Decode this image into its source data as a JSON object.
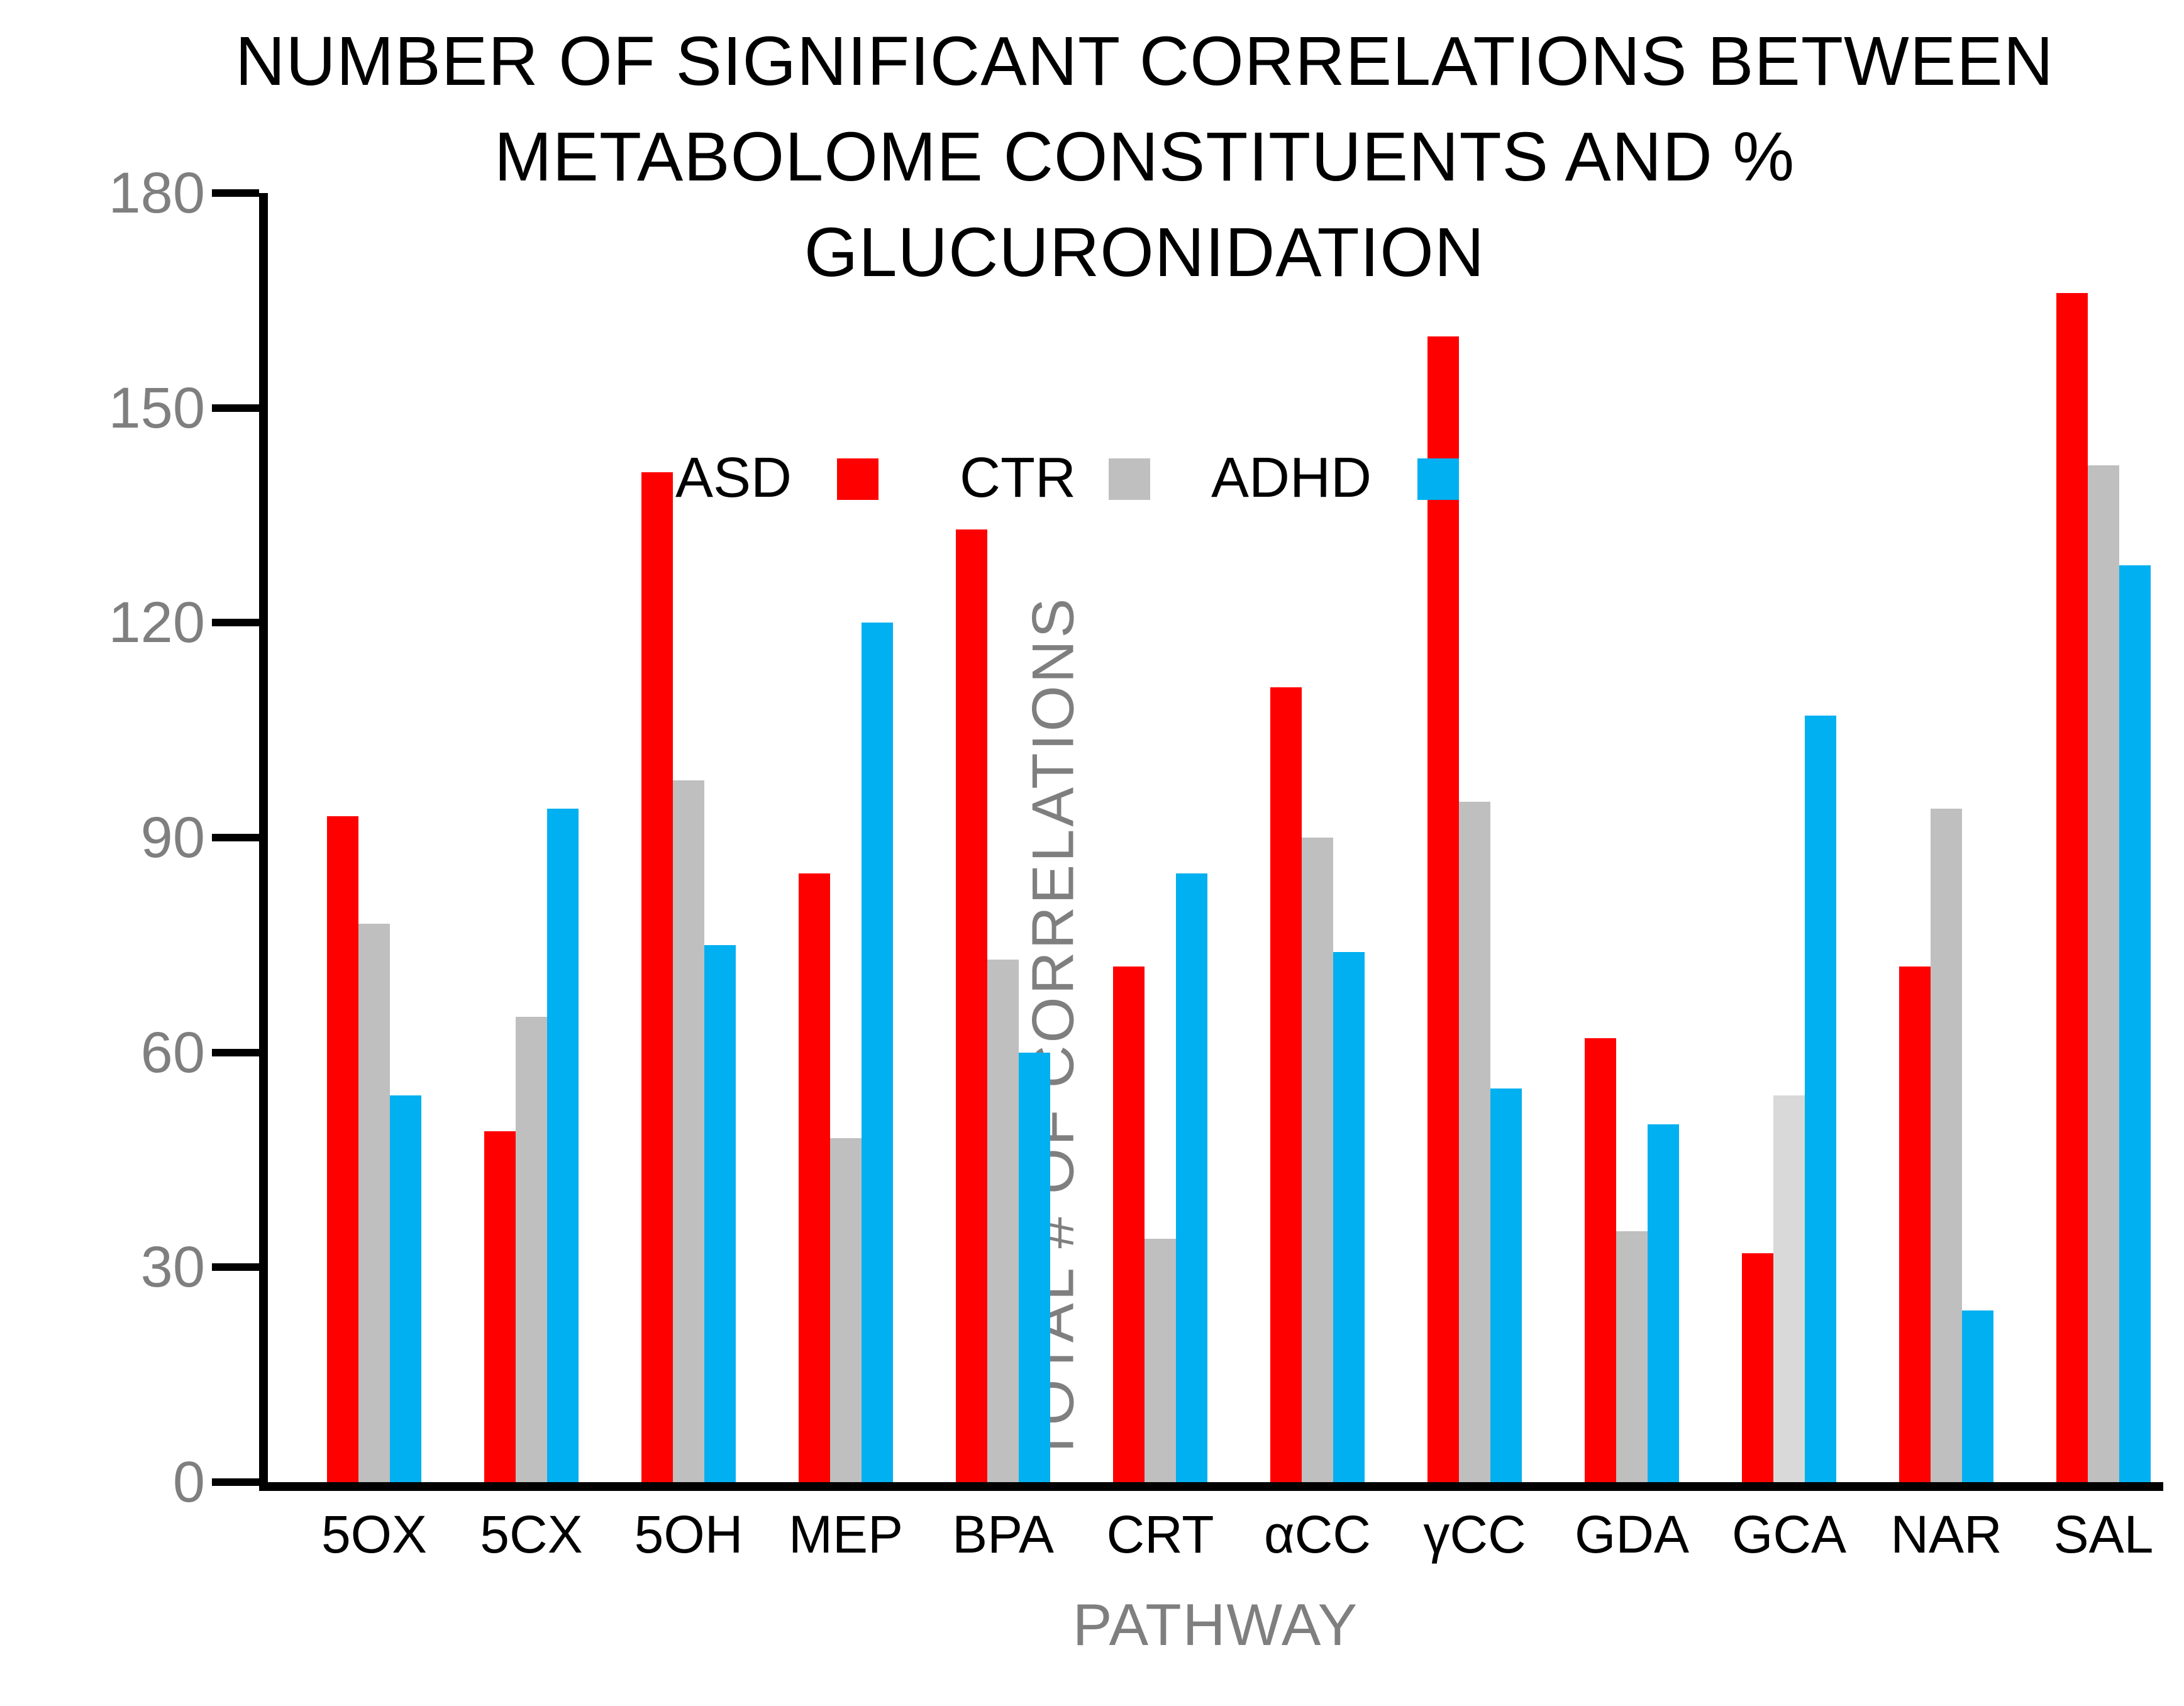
{
  "chart_data": {
    "type": "bar",
    "title_lines": [
      "NUMBER OF SIGNIFICANT CORRELATIONS BETWEEN",
      "METABOLOME CONSTITUENTS AND % GLUCURONIDATION"
    ],
    "xlabel": "PATHWAY",
    "ylabel": "TOTAL # OF CORRELATIONS",
    "ylim": [
      0,
      180
    ],
    "y_ticks": [
      0,
      30,
      60,
      90,
      120,
      150,
      180
    ],
    "grid": false,
    "legend_position": "inside-top-left",
    "categories": [
      "5OX",
      "5CX",
      "5OH",
      "MEP",
      "BPA",
      "CRT",
      "αCC",
      "γCC",
      "GDA",
      "GCA",
      "NAR",
      "SAL"
    ],
    "series": [
      {
        "name": "ASD",
        "color": "#FF0000",
        "values": [
          93,
          49,
          141,
          85,
          133,
          72,
          111,
          160,
          62,
          32,
          72,
          166
        ]
      },
      {
        "name": "CTR",
        "color": "#BFBFBF",
        "values": [
          78,
          65,
          98,
          48,
          73,
          34,
          90,
          95,
          35,
          54,
          94,
          142
        ]
      },
      {
        "name": "ADHD",
        "color": "#00B0F0",
        "values": [
          54,
          94,
          75,
          120,
          60,
          85,
          74,
          55,
          50,
          107,
          24,
          128
        ]
      }
    ],
    "color_overrides": [
      {
        "category": "GCA",
        "series": "CTR",
        "color": "#D9D9D9"
      }
    ],
    "text_colors": {
      "title": "#000000",
      "tick_labels": "#7F7F7F",
      "axis_titles": "#7F7F7F",
      "category_labels": "#000000",
      "legend_labels": "#000000",
      "axis_line": "#000000"
    }
  }
}
